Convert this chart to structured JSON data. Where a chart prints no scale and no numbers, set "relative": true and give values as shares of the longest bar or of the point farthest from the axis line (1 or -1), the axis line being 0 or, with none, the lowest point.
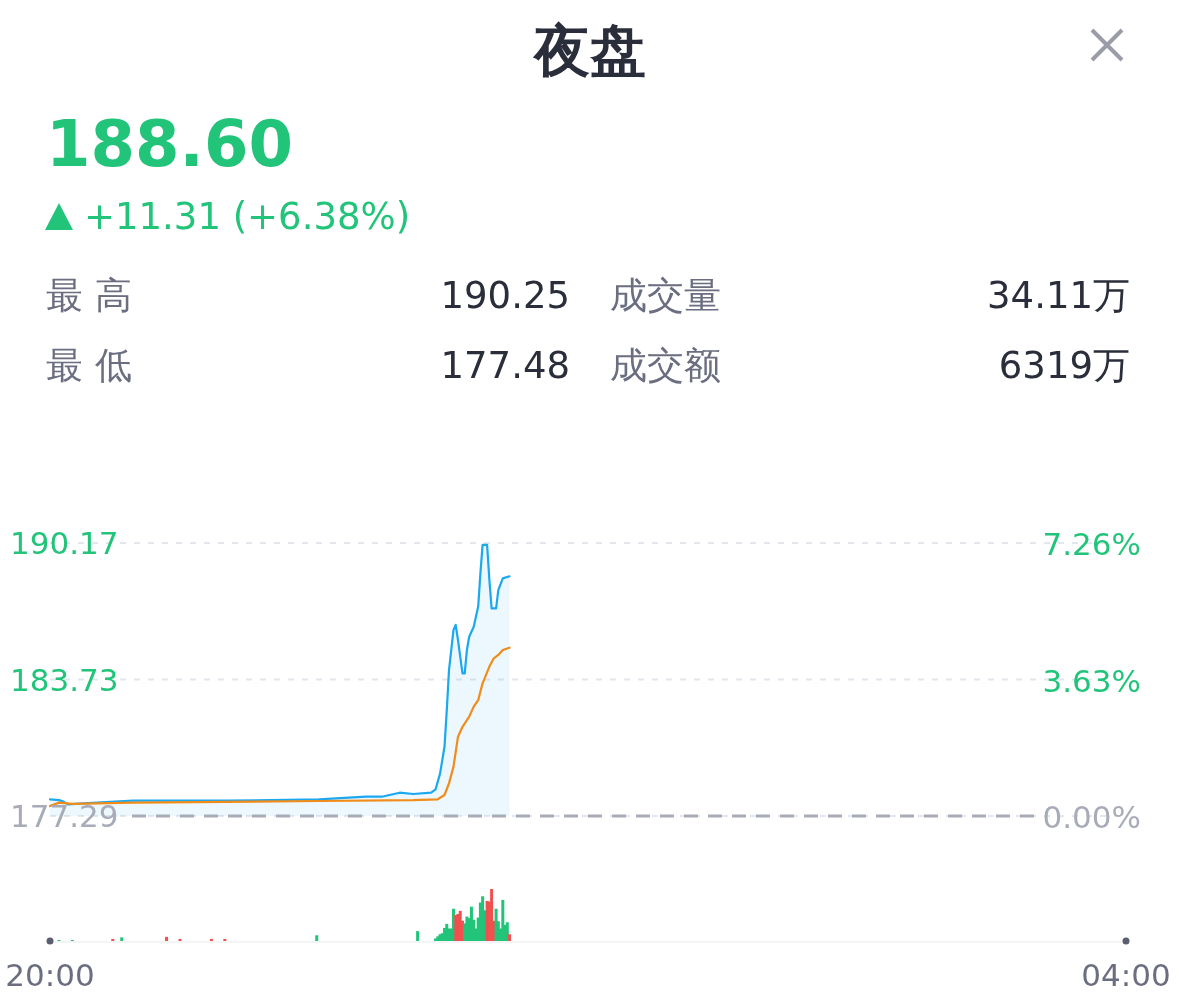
{
  "chart_data": [
    {
      "type": "other",
      "title": "夜盘",
      "annotations": [
        "188.60",
        "+11.31 (+6.38%)",
        "最 高",
        "190.25",
        "成交量",
        "34.11万",
        "最 低",
        "177.48",
        "成交额",
        "6319万"
      ]
    },
    {
      "type": "line",
      "xlim": [
        "--01-01T20:00",
        "--01-02T04:00"
      ],
      "ylim": [
        177.29,
        190.17
      ],
      "yticks": [
        190.17,
        183.73,
        177.29
      ],
      "y2lim": [
        0,
        7.26
      ],
      "y2ticks": [
        {
          "value": 7.26,
          "label": "7.26%"
        },
        {
          "value": 3.63,
          "label": "3.63%"
        },
        {
          "value": 0,
          "label": "0.00%"
        }
      ],
      "grid": "y",
      "tick_labels": "y",
      "ref_lines": [
        {
          "axis": "y",
          "value": 177.29,
          "color": "#a8abb8",
          "line_style": "dashed"
        }
      ],
      "series": [
        {
          "type": "area",
          "color": "#1aa8f0",
          "x": [
            "--01-01T20:00",
            "--01-01T20:04",
            "--01-01T20:06",
            "--01-01T20:08",
            "--01-01T20:15",
            "--01-01T20:37",
            "--01-01T21:19",
            "--01-01T22:00",
            "--01-01T22:21",
            "--01-01T22:28",
            "--01-01T22:36",
            "--01-01T22:42",
            "--01-01T22:50",
            "--01-01T22:52",
            "--01-01T22:54",
            "--01-01T22:56",
            "--01-01T22:57",
            "--01-01T22:58",
            "--01-01T23:00",
            "--01-01T23:01",
            "--01-01T23:02",
            "--01-01T23:04",
            "--01-01T23:05",
            "--01-01T23:06",
            "--01-01T23:07",
            "--01-01T23:09",
            "--01-01T23:11",
            "--01-01T23:12",
            "--01-01T23:13",
            "--01-01T23:15",
            "--01-01T23:16",
            "--01-01T23:17",
            "--01-01T23:19",
            "--01-01T23:20",
            "--01-01T23:22",
            "--01-01T23:25"
          ],
          "values": [
            178.08,
            178.04,
            177.97,
            177.84,
            177.89,
            178.01,
            178.01,
            178.08,
            178.2,
            178.2,
            178.39,
            178.33,
            178.39,
            178.55,
            179.3,
            180.56,
            182.29,
            184.18,
            186.07,
            186.3,
            185.59,
            184.02,
            184.02,
            185.12,
            185.75,
            186.22,
            187.17,
            188.74,
            190.08,
            190.08,
            188.42,
            187.09,
            187.09,
            187.95,
            188.5,
            188.6
          ]
        },
        {
          "type": "line",
          "color": "#f08c1a",
          "x": [
            "--01-01T20:00",
            "--01-01T20:04",
            "--01-01T20:10",
            "--01-01T20:37",
            "--01-01T22:00",
            "--01-01T22:42",
            "--01-01T22:53",
            "--01-01T22:56",
            "--01-01T22:58",
            "--01-01T23:00",
            "--01-01T23:02",
            "--01-01T23:04",
            "--01-01T23:07",
            "--01-01T23:09",
            "--01-01T23:11",
            "--01-01T23:13",
            "--01-01T23:16",
            "--01-01T23:18",
            "--01-01T23:20",
            "--01-01T23:22",
            "--01-01T23:25"
          ],
          "values": [
            177.76,
            177.92,
            177.86,
            177.92,
            178.0,
            178.04,
            178.08,
            178.28,
            178.83,
            179.62,
            181.03,
            181.5,
            181.98,
            182.45,
            182.76,
            183.55,
            184.34,
            184.73,
            184.89,
            185.12,
            185.23
          ]
        }
      ]
    },
    {
      "type": "bar",
      "relative": true,
      "xlim": [
        "--01-01T20:00",
        "--01-02T04:00"
      ],
      "xticks": [
        {
          "value": "--01-01T20:00",
          "label": "20:00"
        },
        {
          "value": "--01-02T04:00",
          "label": "04:00"
        }
      ],
      "x": [
        "--01-01T20:04",
        "--01-01T20:10",
        "--01-01T20:28",
        "--01-01T20:32",
        "--01-01T20:52",
        "--01-01T20:58",
        "--01-01T21:12",
        "--01-01T21:18",
        "--01-01T21:59",
        "--01-01T22:44",
        "--01-01T22:52",
        "--01-01T22:53",
        "--01-01T22:54",
        "--01-01T22:55",
        "--01-01T22:56",
        "--01-01T22:57",
        "--01-01T22:58",
        "--01-01T22:59",
        "--01-01T23:00",
        "--01-01T23:01",
        "--01-01T23:02",
        "--01-01T23:03",
        "--01-01T23:04",
        "--01-01T23:05",
        "--01-01T23:06",
        "--01-01T23:07",
        "--01-01T23:08",
        "--01-01T23:09",
        "--01-01T23:10",
        "--01-01T23:11",
        "--01-01T23:12",
        "--01-01T23:13",
        "--01-01T23:14",
        "--01-01T23:15",
        "--01-01T23:16",
        "--01-01T23:17",
        "--01-01T23:18",
        "--01-01T23:19",
        "--01-01T23:20",
        "--01-01T23:21",
        "--01-01T23:22",
        "--01-01T23:23",
        "--01-01T23:24",
        "--01-01T23:25"
      ],
      "values": [
        0.02,
        0.02,
        0.04,
        0.07,
        0.08,
        0.04,
        0.04,
        0.04,
        0.11,
        0.19,
        0.05,
        0.09,
        0.13,
        0.15,
        0.25,
        0.33,
        0.24,
        0.24,
        0.62,
        0.5,
        0.52,
        0.58,
        0.39,
        0.34,
        0.47,
        0.44,
        0.66,
        0.41,
        0.24,
        0.45,
        0.74,
        0.86,
        0.59,
        0.77,
        0.76,
        1,
        0.39,
        0.62,
        0.38,
        0.24,
        0.79,
        0.31,
        0.36,
        0.13
      ],
      "colors": [
        "#22c47a",
        "#22c47a",
        "#f0504f",
        "#22c47a",
        "#f0504f",
        "#f0504f",
        "#f0504f",
        "#f0504f",
        "#22c47a",
        "#22c47a",
        "#22c47a",
        "#22c47a",
        "#22c47a",
        "#22c47a",
        "#22c47a",
        "#22c47a",
        "#22c47a",
        "#22c47a",
        "#22c47a",
        "#f0504f",
        "#f0504f",
        "#f0504f",
        "#f0504f",
        "#22c47a",
        "#22c47a",
        "#22c47a",
        "#22c47a",
        "#22c47a",
        "#22c47a",
        "#22c47a",
        "#22c47a",
        "#22c47a",
        "#22c47a",
        "#f0504f",
        "#f0504f",
        "#f0504f",
        "#f0504f",
        "#22c47a",
        "#22c47a",
        "#22c47a",
        "#22c47a",
        "#22c47a",
        "#22c47a",
        "#f0504f"
      ]
    }
  ]
}
